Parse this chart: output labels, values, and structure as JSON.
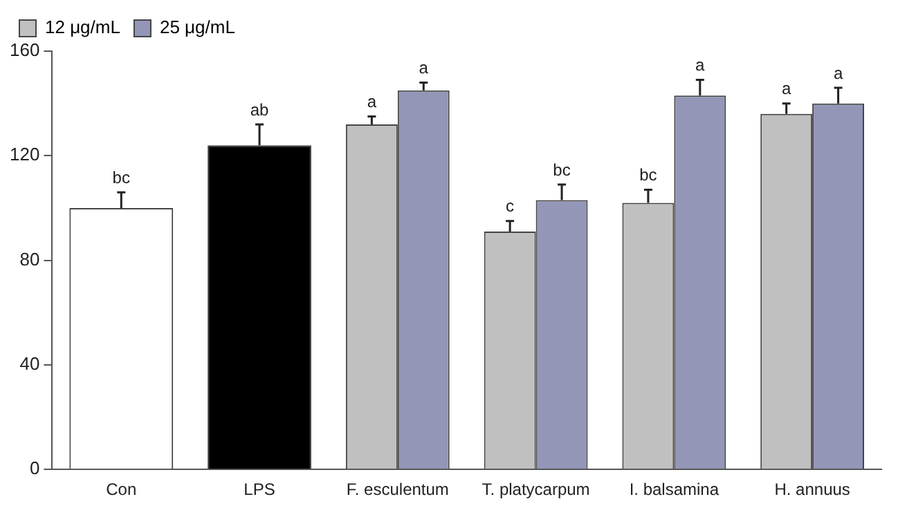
{
  "chart_data": {
    "type": "bar",
    "categories": [
      "Con",
      "LPS",
      "F. esculentum",
      "T. platycarpum",
      "I. balsamina",
      "H. annuus"
    ],
    "series": [
      {
        "colors": [
          "#ffffff",
          "#000000",
          null,
          null,
          null,
          null
        ],
        "values": [
          100,
          124,
          null,
          null,
          null,
          null
        ],
        "errors": [
          6,
          8,
          null,
          null,
          null,
          null
        ],
        "value_labels": [
          "bc",
          "ab",
          null,
          null,
          null,
          null
        ]
      },
      {
        "name": "12 μg/mL",
        "color": "#c0c0c0",
        "values": [
          null,
          null,
          132,
          91,
          102,
          136
        ],
        "errors": [
          null,
          null,
          3,
          4,
          5,
          4
        ],
        "value_labels": [
          null,
          null,
          "a",
          "c",
          "bc",
          "a"
        ]
      },
      {
        "name": "25 μg/mL",
        "color": "#9496b8",
        "values": [
          null,
          null,
          145,
          103,
          143,
          140
        ],
        "errors": [
          null,
          null,
          3,
          6,
          6,
          6
        ],
        "value_labels": [
          null,
          null,
          "a",
          "bc",
          "a",
          "a"
        ]
      }
    ],
    "ylim": [
      0,
      160
    ],
    "yticks": [
      0,
      40,
      80,
      120,
      160
    ],
    "grid": false,
    "legend": "top left"
  }
}
